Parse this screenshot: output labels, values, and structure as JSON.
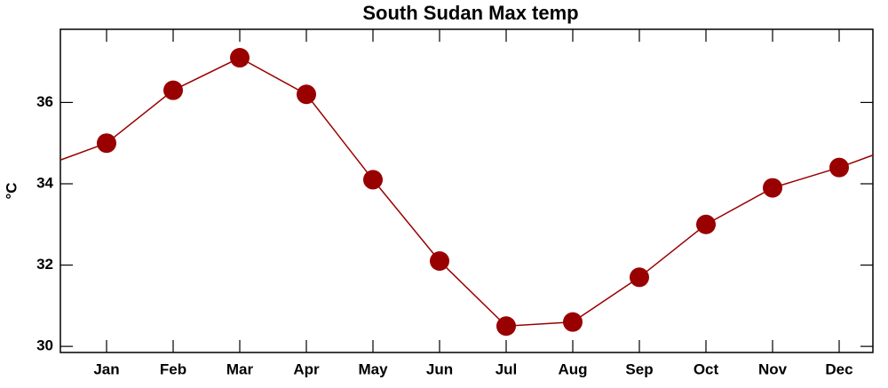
{
  "chart_data": {
    "type": "line",
    "title": "South Sudan Max temp",
    "y_label": "°C",
    "categories": [
      "Jan",
      "Feb",
      "Mar",
      "Apr",
      "May",
      "Jun",
      "Jul",
      "Aug",
      "Sep",
      "Oct",
      "Nov",
      "Dec"
    ],
    "series": [
      {
        "name": "Max temp",
        "color": "#990000",
        "values": [
          35.0,
          36.3,
          37.1,
          36.2,
          34.1,
          32.1,
          30.5,
          30.6,
          31.7,
          33.0,
          33.9,
          34.4
        ]
      }
    ],
    "ylim": [
      29.85,
      37.8
    ],
    "yticks": [
      30,
      32,
      34,
      36
    ]
  }
}
